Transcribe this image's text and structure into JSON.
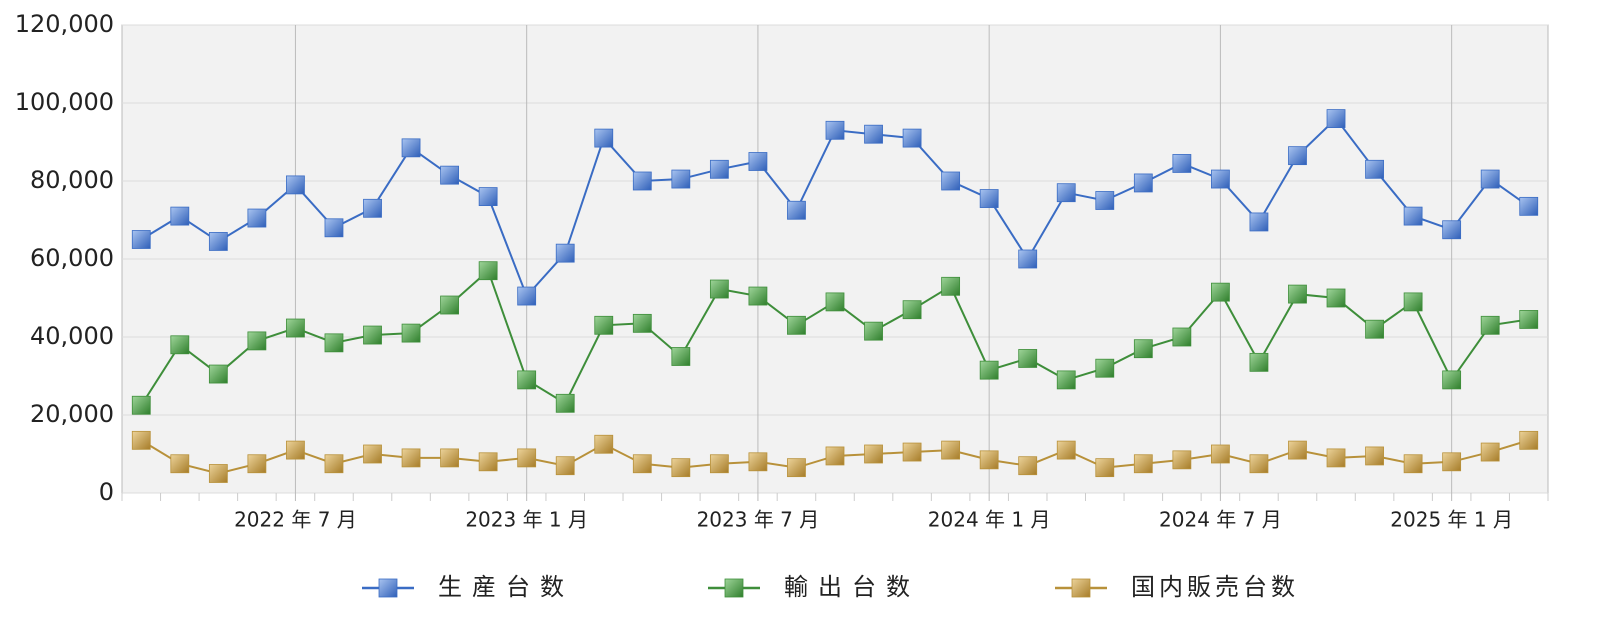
{
  "chart_data": {
    "type": "line",
    "categories": [
      null,
      null,
      null,
      null,
      "2022 年 7 月",
      null,
      null,
      null,
      null,
      null,
      "2023 年 1 月",
      null,
      null,
      null,
      null,
      null,
      "2023 年 7 月",
      null,
      null,
      null,
      null,
      null,
      "2024 年 1 月",
      null,
      null,
      null,
      null,
      null,
      "2024 年 7 月",
      null,
      null,
      null,
      null,
      null,
      "2025 年 1 月",
      null,
      null
    ],
    "series": [
      {
        "name": "生産台数",
        "color": "#3a6cc4",
        "values": [
          65000,
          71000,
          64500,
          70500,
          79000,
          68000,
          73000,
          88500,
          81500,
          76000,
          50500,
          61500,
          91000,
          80000,
          80500,
          83000,
          85000,
          72500,
          93000,
          92000,
          91000,
          80000,
          75500,
          60000,
          77000,
          75000,
          79500,
          84500,
          80500,
          69500,
          86500,
          96000,
          83000,
          71000,
          67500,
          80500,
          73500
        ]
      },
      {
        "name": "輸出台数",
        "color": "#3e8e3a",
        "values": [
          22500,
          38000,
          30500,
          39000,
          42300,
          38500,
          40500,
          41000,
          48200,
          57000,
          29000,
          23000,
          43000,
          43500,
          35000,
          52300,
          50500,
          43000,
          49000,
          41500,
          47000,
          53000,
          31500,
          34500,
          29000,
          32000,
          37000,
          40000,
          51500,
          33500,
          51000,
          50000,
          42000,
          49000,
          29000,
          43000,
          44500
        ]
      },
      {
        "name": "国内販売台数",
        "color": "#b8913a",
        "values": [
          13500,
          7500,
          5000,
          7500,
          11000,
          7500,
          10000,
          9000,
          9000,
          8000,
          9000,
          7000,
          12500,
          7500,
          6500,
          7500,
          8000,
          6500,
          9500,
          10000,
          10500,
          11000,
          8500,
          7000,
          11000,
          6500,
          7500,
          8500,
          10000,
          7500,
          11000,
          9000,
          9500,
          7500,
          8000,
          10500,
          13500
        ]
      }
    ],
    "ylim": [
      0,
      120000
    ],
    "yticks": [
      0,
      {
        "value": 20000,
        "label": "20,000"
      },
      {
        "value": 40000,
        "label": "40,000"
      },
      {
        "value": 60000,
        "label": "60,000"
      },
      {
        "value": 80000,
        "label": "80,000"
      },
      {
        "value": 100000,
        "label": "100,000"
      },
      {
        "value": 120000,
        "label": "120,000"
      }
    ],
    "grid": true,
    "legend": "bottom"
  }
}
